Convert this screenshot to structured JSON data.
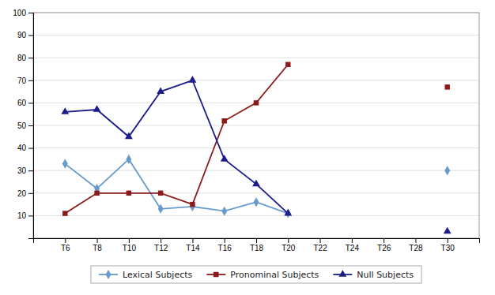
{
  "chart_data": {
    "type": "line",
    "x": [
      6,
      8,
      10,
      12,
      14,
      16,
      18,
      20,
      22,
      24,
      26,
      28,
      30
    ],
    "series": [
      {
        "name": "Lexical Subjects",
        "color": "#6699CC",
        "marker": "diamond",
        "values": [
          33,
          22,
          35,
          13,
          14,
          12,
          16,
          11,
          null,
          null,
          null,
          null,
          30
        ]
      },
      {
        "name": "Pronominal Subjects",
        "color": "#8B1A1A",
        "marker": "square",
        "values": [
          11,
          20,
          20,
          20,
          15,
          52,
          60,
          77,
          null,
          null,
          null,
          null,
          67
        ]
      },
      {
        "name": "Null Subjects",
        "color": "#1C1C8B",
        "marker": "triangle",
        "values": [
          56,
          57,
          45,
          65,
          70,
          35,
          24,
          11,
          null,
          null,
          null,
          null,
          3
        ]
      }
    ],
    "xlim": [
      4,
      32
    ],
    "xticks": [
      {
        "value": 6,
        "label": "T6"
      },
      {
        "value": 8,
        "label": "T8"
      },
      {
        "value": 10,
        "label": "T10"
      },
      {
        "value": 12,
        "label": "T12"
      },
      {
        "value": 14,
        "label": "T14"
      },
      {
        "value": 16,
        "label": "T16"
      },
      {
        "value": 18,
        "label": "T18"
      },
      {
        "value": 20,
        "label": "T20"
      },
      {
        "value": 22,
        "label": "T22"
      },
      {
        "value": 24,
        "label": "T24"
      },
      {
        "value": 26,
        "label": "T26"
      },
      {
        "value": 28,
        "label": "T28"
      },
      {
        "value": 30,
        "label": "T30"
      }
    ],
    "ylim": [
      0,
      100
    ],
    "yticks": [
      10,
      20,
      30,
      40,
      50,
      60,
      70,
      80,
      90,
      100
    ],
    "grid": true,
    "legend": "bottom"
  }
}
